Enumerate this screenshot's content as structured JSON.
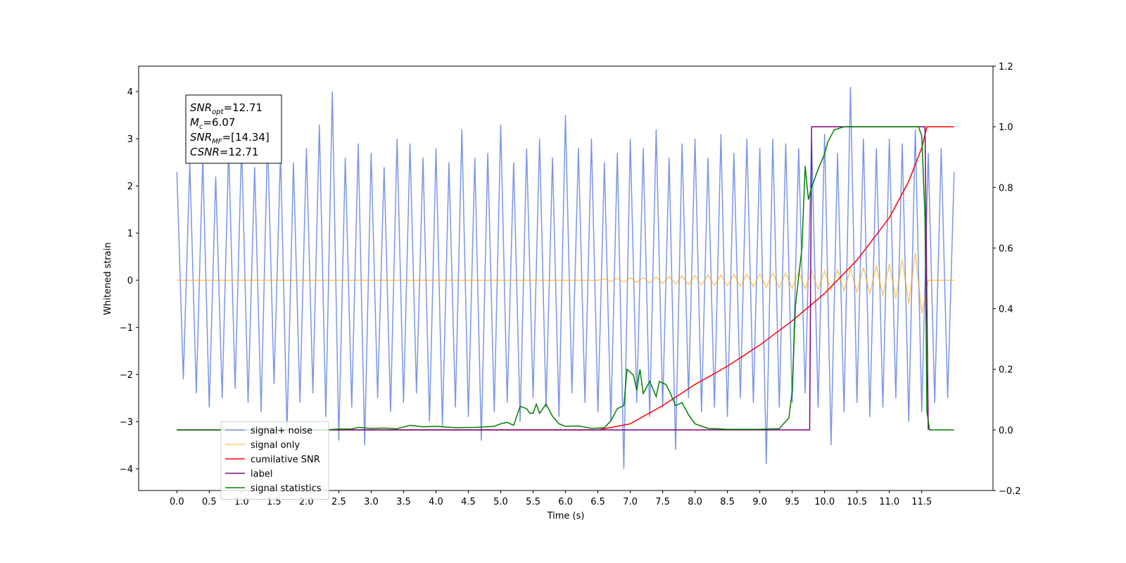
{
  "chart_data": {
    "type": "line",
    "xlabel": "Time (s)",
    "ylabel": "Whitened strain",
    "xlim": [
      -0.59,
      12.6
    ],
    "ylim": [
      -4.46,
      4.54
    ],
    "y2lim": [
      -0.2,
      1.2
    ],
    "xticks": [
      {
        "value": 0,
        "label": "0.0"
      },
      {
        "value": 0.5,
        "label": "0.5"
      },
      {
        "value": 1,
        "label": "1.0"
      },
      {
        "value": 1.5,
        "label": "1.5"
      },
      {
        "value": 2,
        "label": "2.0"
      },
      {
        "value": 2.5,
        "label": "2.5"
      },
      {
        "value": 3,
        "label": "3.0"
      },
      {
        "value": 3.5,
        "label": "3.5"
      },
      {
        "value": 4,
        "label": "4.0"
      },
      {
        "value": 4.5,
        "label": "4.5"
      },
      {
        "value": 5,
        "label": "5.0"
      },
      {
        "value": 5.5,
        "label": "5.5"
      },
      {
        "value": 6,
        "label": "6.0"
      },
      {
        "value": 6.5,
        "label": "6.5"
      },
      {
        "value": 7,
        "label": "7.0"
      },
      {
        "value": 7.5,
        "label": "7.5"
      },
      {
        "value": 8,
        "label": "8.0"
      },
      {
        "value": 8.5,
        "label": "8.5"
      },
      {
        "value": 9,
        "label": "9.0"
      },
      {
        "value": 9.5,
        "label": "9.5"
      },
      {
        "value": 10,
        "label": "10.0"
      },
      {
        "value": 10.5,
        "label": "10.5"
      },
      {
        "value": 11,
        "label": "11.0"
      },
      {
        "value": 11.5,
        "label": "11.5"
      }
    ],
    "yticks": [
      {
        "value": -4,
        "label": "−4"
      },
      {
        "value": -3,
        "label": "−3"
      },
      {
        "value": -2,
        "label": "−2"
      },
      {
        "value": -1,
        "label": "−1"
      },
      0,
      1,
      2,
      3,
      4
    ],
    "y2ticks": [
      {
        "value": -0.2,
        "label": "−0.2"
      },
      {
        "value": 0,
        "label": "0.0"
      },
      0.2,
      0.4,
      0.6,
      0.8,
      {
        "value": 1,
        "label": "1.0"
      },
      1.2
    ],
    "legend": "lower left",
    "annotation": [
      {
        "main": "SNR",
        "sub": "opt",
        "rest": "=12.71"
      },
      {
        "main": "M",
        "sub": "c",
        "rest": "=6.07"
      },
      {
        "main": "SNR",
        "sub": "MF",
        "rest": "=[14.34]"
      },
      {
        "main": "CSNR",
        "sub": null,
        "rest": "=12.71"
      }
    ],
    "series": [
      {
        "name": "signal+ noise",
        "color": "#7b96e8",
        "axis": "y",
        "x": [
          0,
          0.1,
          0.2,
          0.3,
          0.4,
          0.5,
          0.6,
          0.7,
          0.8,
          0.9,
          1,
          1.1,
          1.2,
          1.3,
          1.4,
          1.5,
          1.6,
          1.7,
          1.8,
          1.9,
          2,
          2.1,
          2.2,
          2.3,
          2.4,
          2.5,
          2.6,
          2.7,
          2.8,
          2.9,
          3,
          3.1,
          3.2,
          3.3,
          3.4,
          3.5,
          3.6,
          3.7,
          3.8,
          3.9,
          4,
          4.1,
          4.2,
          4.3,
          4.4,
          4.5,
          4.6,
          4.7,
          4.8,
          4.9,
          5,
          5.1,
          5.2,
          5.3,
          5.4,
          5.5,
          5.6,
          5.7,
          5.8,
          5.9,
          6,
          6.1,
          6.2,
          6.3,
          6.4,
          6.5,
          6.6,
          6.7,
          6.8,
          6.9,
          7,
          7.1,
          7.2,
          7.3,
          7.4,
          7.5,
          7.6,
          7.7,
          7.8,
          7.9,
          8,
          8.1,
          8.2,
          8.3,
          8.4,
          8.5,
          8.6,
          8.7,
          8.8,
          8.9,
          9,
          9.1,
          9.2,
          9.3,
          9.4,
          9.5,
          9.6,
          9.7,
          9.8,
          9.9,
          10,
          10.1,
          10.2,
          10.3,
          10.4,
          10.5,
          10.6,
          10.7,
          10.8,
          10.9,
          11,
          11.1,
          11.2,
          11.3,
          11.4,
          11.5,
          11.6,
          11.7,
          11.8,
          11.9,
          12
        ],
        "values": [
          2.3,
          -2.1,
          2.5,
          -2.4,
          2.6,
          -2.7,
          2.2,
          -2.5,
          2.8,
          -2.3,
          2.9,
          -2.6,
          2.4,
          -2.8,
          3.0,
          -2.2,
          2.7,
          -3.2,
          2.5,
          -2.6,
          2.8,
          -2.4,
          3.3,
          -2.9,
          4.0,
          -3.4,
          2.6,
          -2.7,
          2.9,
          -3.5,
          2.7,
          -2.5,
          2.4,
          -2.8,
          3.0,
          -2.6,
          2.9,
          -2.4,
          2.6,
          -3.0,
          2.8,
          -3.1,
          2.5,
          -2.7,
          3.2,
          -2.9,
          2.6,
          -3.4,
          2.7,
          -2.8,
          3.3,
          -2.6,
          2.5,
          -3.0,
          2.8,
          -2.5,
          3.0,
          -2.7,
          2.6,
          -2.9,
          3.5,
          -2.4,
          2.8,
          -2.6,
          3.0,
          -2.8,
          2.5,
          -3.0,
          2.7,
          -4.0,
          3.0,
          -2.6,
          2.8,
          -2.9,
          3.2,
          -2.7,
          2.6,
          -3.6,
          2.9,
          -2.5,
          3.0,
          -2.8,
          2.6,
          -2.7,
          3.1,
          -2.9,
          2.7,
          -2.5,
          3.0,
          -2.6,
          2.8,
          -3.9,
          3.0,
          -2.7,
          2.9,
          -2.6,
          2.8,
          -2.4,
          3.0,
          -2.7,
          3.1,
          -3.5,
          2.7,
          -2.8,
          4.1,
          -2.6,
          3.0,
          -2.9,
          2.8,
          -2.7,
          3.0,
          -2.5,
          2.9,
          -3.0,
          3.2,
          -2.8,
          2.7,
          -2.6,
          2.8,
          -2.5,
          2.3
        ]
      },
      {
        "name": "signal only",
        "color": "#ffa500",
        "axis": "y",
        "x": [
          0,
          6.5,
          6.6,
          6.7,
          6.8,
          6.9,
          7,
          7.1,
          7.2,
          7.3,
          7.4,
          7.5,
          7.6,
          7.7,
          7.8,
          7.9,
          8,
          8.1,
          8.2,
          8.3,
          8.4,
          8.5,
          8.6,
          8.7,
          8.8,
          8.9,
          9,
          9.1,
          9.2,
          9.3,
          9.4,
          9.5,
          9.6,
          9.7,
          9.8,
          9.9,
          10,
          10.1,
          10.2,
          10.3,
          10.4,
          10.5,
          10.6,
          10.7,
          10.8,
          10.9,
          11,
          11.1,
          11.2,
          11.3,
          11.4,
          11.5,
          11.6,
          12
        ],
        "values": [
          0,
          0,
          0.03,
          -0.03,
          0.04,
          -0.04,
          0.05,
          -0.05,
          0.06,
          -0.06,
          0.07,
          -0.07,
          0.08,
          -0.08,
          0.09,
          -0.09,
          0.1,
          -0.1,
          0.11,
          -0.11,
          0.11,
          -0.12,
          0.12,
          -0.13,
          0.13,
          -0.14,
          0.14,
          -0.15,
          0.15,
          -0.16,
          0.16,
          -0.17,
          0.18,
          -0.18,
          0.19,
          -0.2,
          0.2,
          -0.21,
          0.22,
          -0.23,
          0.24,
          -0.25,
          0.27,
          -0.29,
          0.31,
          -0.33,
          0.35,
          -0.39,
          0.44,
          -0.5,
          0.58,
          -0.7,
          0,
          0
        ]
      },
      {
        "name": "cumilative SNR",
        "color": "#ff0000",
        "axis": "y2",
        "x": [
          0,
          6.5,
          7,
          7.5,
          8,
          8.5,
          9,
          9.5,
          10,
          10.5,
          11,
          11.3,
          11.5,
          11.58,
          12
        ],
        "values": [
          0,
          0,
          0.02,
          0.08,
          0.15,
          0.21,
          0.28,
          0.36,
          0.45,
          0.56,
          0.7,
          0.82,
          0.93,
          1,
          1
        ]
      },
      {
        "name": "label",
        "color": "#800080",
        "axis": "y2",
        "x": [
          0,
          9.77,
          9.8,
          11.55,
          11.6
        ],
        "values": [
          0,
          0,
          1,
          1,
          0
        ]
      },
      {
        "name": "signal statistics",
        "color": "#008000",
        "axis": "y2",
        "x": [
          0,
          2.3,
          2.5,
          2.7,
          2.8,
          3,
          3.2,
          3.4,
          3.6,
          3.8,
          4,
          4.3,
          4.6,
          4.9,
          5,
          5.1,
          5.2,
          5.3,
          5.4,
          5.45,
          5.5,
          5.55,
          5.6,
          5.7,
          5.8,
          5.9,
          6,
          6.2,
          6.4,
          6.6,
          6.7,
          6.8,
          6.9,
          6.95,
          7.05,
          7.1,
          7.15,
          7.2,
          7.3,
          7.4,
          7.45,
          7.55,
          7.6,
          7.7,
          7.8,
          7.9,
          8,
          8.2,
          8.5,
          9,
          9.3,
          9.45,
          9.5,
          9.55,
          9.65,
          9.7,
          9.75,
          9.8,
          9.9,
          10,
          10.05,
          10.15,
          10.3,
          11.45,
          11.5,
          11.55,
          11.58,
          11.62,
          12
        ],
        "values": [
          0,
          0,
          0.003,
          0.003,
          0.008,
          0.005,
          0.006,
          0.004,
          0.015,
          0.01,
          0.012,
          0.007,
          0.008,
          0.012,
          0.02,
          0.025,
          0.015,
          0.078,
          0.07,
          0.055,
          0.055,
          0.085,
          0.055,
          0.085,
          0.045,
          0.02,
          0.012,
          0.013,
          0.005,
          0.007,
          0.03,
          0.07,
          0.08,
          0.2,
          0.18,
          0.13,
          0.2,
          0.12,
          0.16,
          0.11,
          0.16,
          0.15,
          0.13,
          0.08,
          0.09,
          0.05,
          0.02,
          0.005,
          0.002,
          0.002,
          0.004,
          0.04,
          0.13,
          0.41,
          0.6,
          0.87,
          0.76,
          0.8,
          0.86,
          0.91,
          0.95,
          0.99,
          1,
          1,
          0.97,
          0.7,
          0.06,
          0,
          0
        ]
      }
    ]
  }
}
